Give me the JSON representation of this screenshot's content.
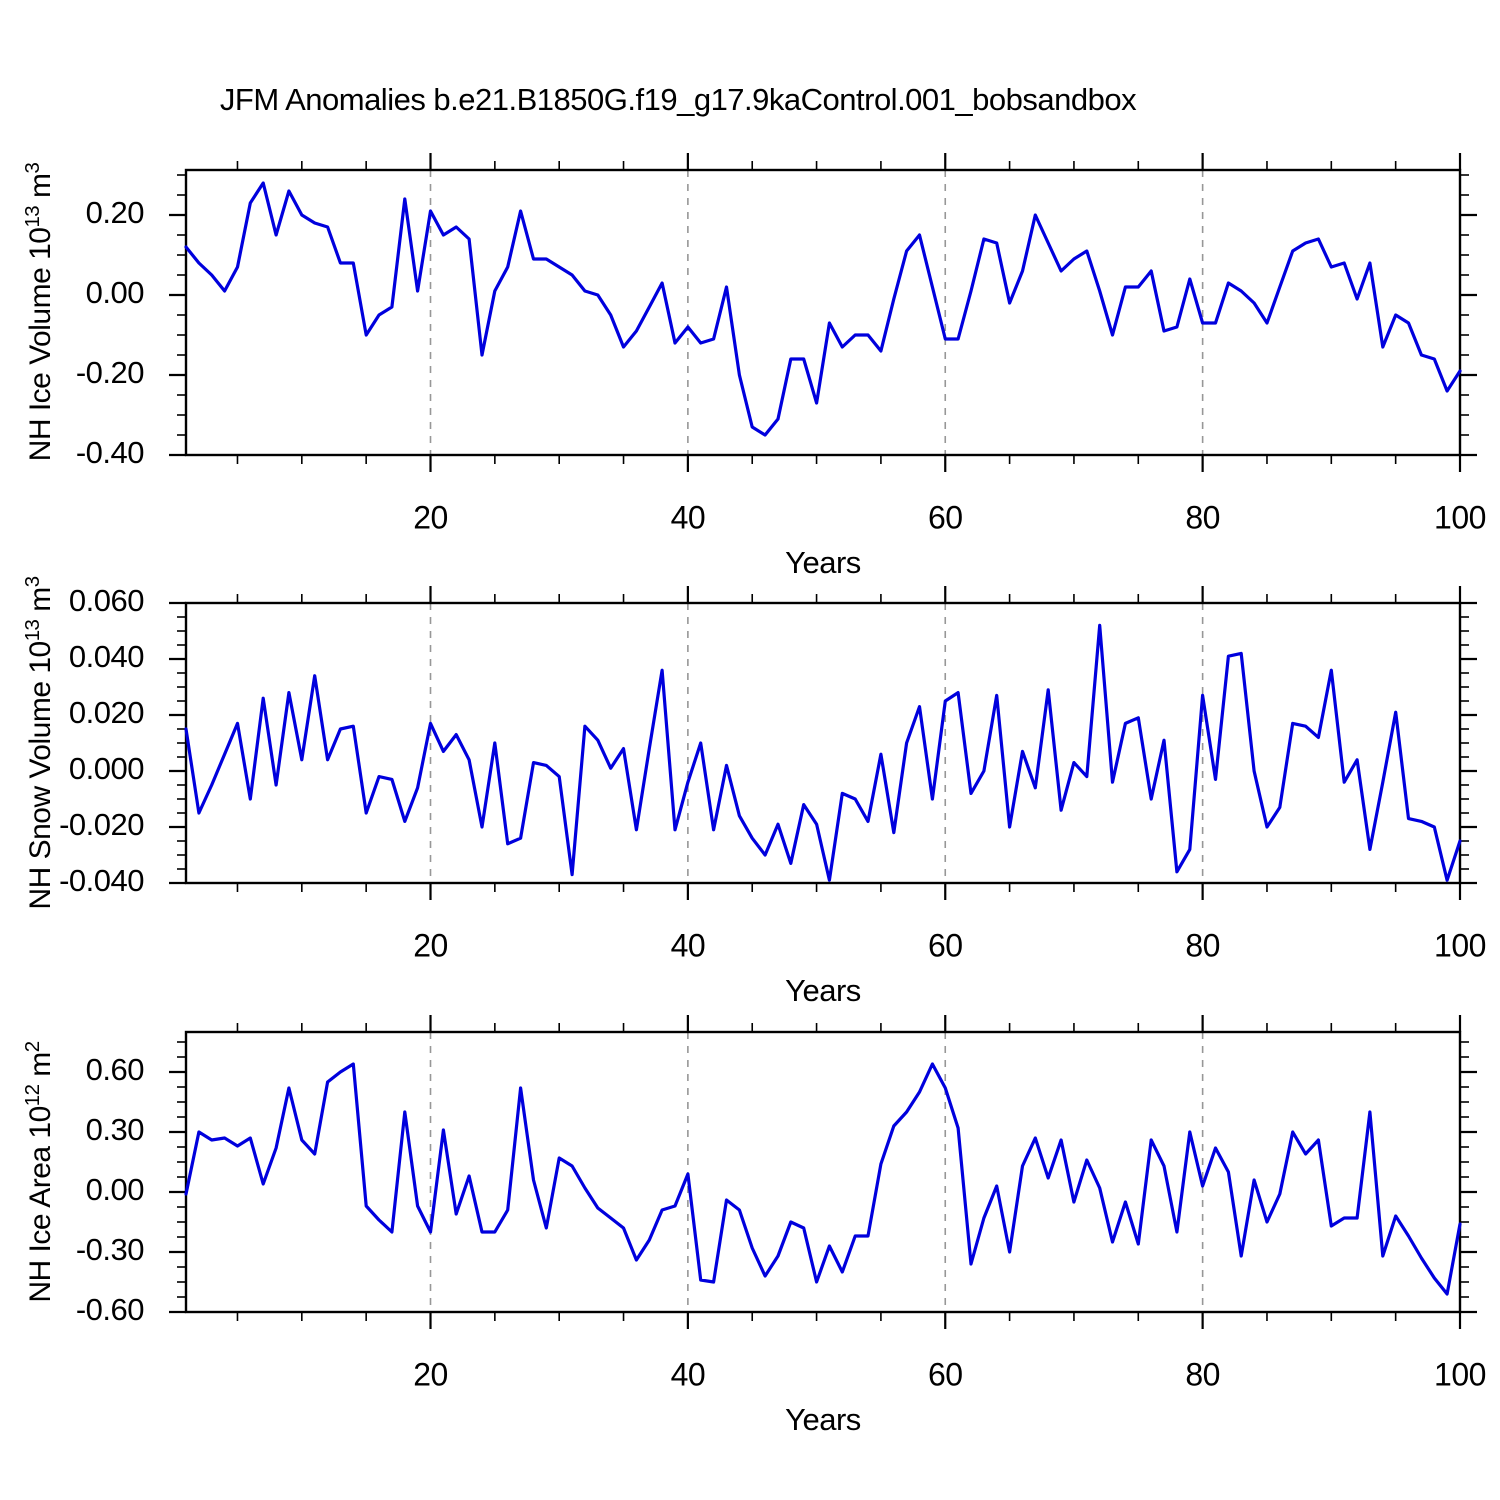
{
  "title": "JFM Anomalies b.e21.B1850G.f19_g17.9kaControl.001_bobsandbox",
  "line_color": "#0000DD",
  "gridline_color": "#979797",
  "axis_color": "#000000",
  "x_axis": {
    "label": "Years",
    "tick_labels": [
      "20",
      "40",
      "60",
      "80",
      "100"
    ],
    "major_ticks": [
      20,
      40,
      60,
      80,
      100
    ],
    "minor_step": 5,
    "gridlines": [
      20,
      40,
      60,
      80
    ],
    "range": [
      1,
      100
    ]
  },
  "chart_data": [
    {
      "type": "line",
      "ylabel": "NH Ice Volume 10^13 m^3",
      "ylabel_parts": {
        "base": "NH Ice Volume 10",
        "sup1": "13",
        "unit": " m",
        "sup2": "3"
      },
      "ylim": [
        -0.4,
        0.3125
      ],
      "ytick_labels": [
        "0.20",
        "0.00",
        "-0.20",
        "-0.40"
      ],
      "ytick_values": [
        0.2,
        0.0,
        -0.2,
        -0.4
      ],
      "ytick_minor_step": 0.05,
      "x_start": 1,
      "x_end": 100,
      "values": [
        0.12,
        0.08,
        0.05,
        0.01,
        0.07,
        0.23,
        0.28,
        0.15,
        0.26,
        0.2,
        0.18,
        0.17,
        0.08,
        0.08,
        -0.1,
        -0.05,
        -0.03,
        0.24,
        0.01,
        0.21,
        0.15,
        0.17,
        0.14,
        -0.15,
        0.01,
        0.07,
        0.21,
        0.09,
        0.09,
        0.07,
        0.05,
        0.01,
        0.0,
        -0.05,
        -0.13,
        -0.09,
        -0.03,
        0.03,
        -0.12,
        -0.08,
        -0.12,
        -0.11,
        0.02,
        -0.2,
        -0.33,
        -0.35,
        -0.31,
        -0.16,
        -0.16,
        -0.27,
        -0.07,
        -0.13,
        -0.1,
        -0.1,
        -0.14,
        -0.01,
        0.11,
        0.15,
        0.02,
        -0.11,
        -0.11,
        0.01,
        0.14,
        0.13,
        -0.02,
        0.06,
        0.2,
        0.13,
        0.06,
        0.09,
        0.11,
        0.01,
        -0.1,
        0.02,
        0.02,
        0.06,
        -0.09,
        -0.08,
        0.04,
        -0.07,
        -0.07,
        0.03,
        0.01,
        -0.02,
        -0.07,
        0.02,
        0.11,
        0.13,
        0.14,
        0.07,
        0.08,
        -0.01,
        0.08,
        -0.13,
        -0.05,
        -0.07,
        -0.15,
        -0.16,
        -0.24,
        -0.19
      ]
    },
    {
      "type": "line",
      "ylabel": "NH Snow Volume 10^13 m^3",
      "ylabel_parts": {
        "base": "NH Snow Volume 10",
        "sup1": "13",
        "unit": " m",
        "sup2": "3"
      },
      "ylim": [
        -0.04,
        0.06
      ],
      "ytick_labels": [
        "0.060",
        "0.040",
        "0.020",
        "0.000",
        "-0.020",
        "-0.040"
      ],
      "ytick_values": [
        0.06,
        0.04,
        0.02,
        0.0,
        -0.02,
        -0.04
      ],
      "ytick_minor_step": 0.005,
      "x_start": 1,
      "x_end": 100,
      "values": [
        0.015,
        -0.015,
        -0.005,
        0.006,
        0.017,
        -0.01,
        0.026,
        -0.005,
        0.028,
        0.004,
        0.034,
        0.004,
        0.015,
        0.016,
        -0.015,
        -0.002,
        -0.003,
        -0.018,
        -0.006,
        0.017,
        0.007,
        0.013,
        0.004,
        -0.02,
        0.01,
        -0.026,
        -0.024,
        0.003,
        0.002,
        -0.002,
        -0.037,
        0.016,
        0.011,
        0.001,
        0.008,
        -0.021,
        0.008,
        0.036,
        -0.021,
        -0.004,
        0.01,
        -0.021,
        0.002,
        -0.016,
        -0.024,
        -0.03,
        -0.019,
        -0.033,
        -0.012,
        -0.019,
        -0.039,
        -0.008,
        -0.01,
        -0.018,
        0.006,
        -0.022,
        0.01,
        0.023,
        -0.01,
        0.025,
        0.028,
        -0.008,
        0.0,
        0.027,
        -0.02,
        0.007,
        -0.006,
        0.029,
        -0.014,
        0.003,
        -0.002,
        0.052,
        -0.004,
        0.017,
        0.019,
        -0.01,
        0.011,
        -0.036,
        -0.028,
        0.027,
        -0.003,
        0.041,
        0.042,
        0.0,
        -0.02,
        -0.013,
        0.017,
        0.016,
        0.012,
        0.036,
        -0.004,
        0.004,
        -0.028,
        -0.004,
        0.021,
        -0.017,
        -0.018,
        -0.02,
        -0.039,
        -0.025
      ]
    },
    {
      "type": "line",
      "ylabel": "NH Ice Area 10^12 m^2",
      "ylabel_parts": {
        "base": "NH Ice Area 10",
        "sup1": "12",
        "unit": " m",
        "sup2": "2"
      },
      "ylim": [
        -0.6,
        0.8
      ],
      "ytick_labels": [
        "0.60",
        "0.30",
        "0.00",
        "-0.30",
        "-0.60"
      ],
      "ytick_values": [
        0.6,
        0.3,
        0.0,
        -0.3,
        -0.6
      ],
      "ytick_minor_step": 0.075,
      "x_start": 1,
      "x_end": 100,
      "values": [
        -0.01,
        0.3,
        0.26,
        0.27,
        0.23,
        0.27,
        0.04,
        0.22,
        0.52,
        0.26,
        0.19,
        0.55,
        0.6,
        0.64,
        -0.07,
        -0.14,
        -0.2,
        0.4,
        -0.07,
        -0.2,
        0.31,
        -0.11,
        0.08,
        -0.2,
        -0.2,
        -0.09,
        0.52,
        0.06,
        -0.18,
        0.17,
        0.13,
        0.02,
        -0.08,
        -0.13,
        -0.18,
        -0.34,
        -0.24,
        -0.09,
        -0.07,
        0.09,
        -0.44,
        -0.45,
        -0.04,
        -0.09,
        -0.28,
        -0.42,
        -0.32,
        -0.15,
        -0.18,
        -0.45,
        -0.27,
        -0.4,
        -0.22,
        -0.22,
        0.14,
        0.33,
        0.4,
        0.5,
        0.64,
        0.52,
        0.32,
        -0.36,
        -0.13,
        0.03,
        -0.3,
        0.13,
        0.27,
        0.07,
        0.26,
        -0.05,
        0.16,
        0.02,
        -0.25,
        -0.05,
        -0.26,
        0.26,
        0.13,
        -0.2,
        0.3,
        0.03,
        0.22,
        0.1,
        -0.32,
        0.06,
        -0.15,
        -0.01,
        0.3,
        0.19,
        0.26,
        -0.17,
        -0.13,
        -0.13,
        0.4,
        -0.32,
        -0.12,
        -0.22,
        -0.33,
        -0.43,
        -0.51,
        -0.16
      ]
    }
  ]
}
